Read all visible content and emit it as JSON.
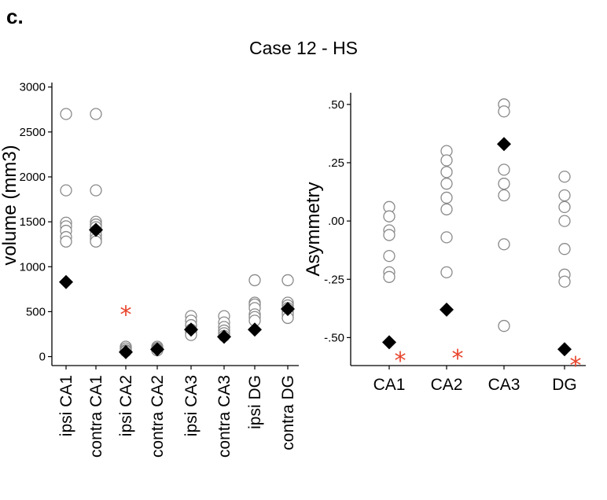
{
  "panel_label": "c.",
  "figure_title": "Case 12 - HS",
  "colors": {
    "open_marker": "#8a8a8a",
    "filled_marker": "#000000",
    "star": "#e8452c",
    "axis": "#000000"
  },
  "chart_data": [
    {
      "type": "scatter",
      "title": "",
      "xlabel": "",
      "ylabel": "Volume (mm3)",
      "ylabel_visible": "volume (mm3)",
      "ylim": [
        -100,
        3050
      ],
      "yticks": [
        0,
        500,
        1000,
        1500,
        2000,
        2500,
        3000
      ],
      "ytick_labels": [
        "0",
        "500",
        "1000",
        "1500",
        "2000",
        "2500",
        "3000"
      ],
      "categories": [
        "ipsi CA1",
        "contra CA1",
        "ipsi CA2",
        "contra CA2",
        "ipsi CA3",
        "contra CA3",
        "ipsi DG",
        "contra DG"
      ],
      "series": [
        {
          "marker": "open-circle",
          "values": [
            [
              2700,
              1850,
              1490,
              1450,
              1400,
              1330,
              1280
            ],
            [
              2700,
              1850,
              1500,
              1470,
              1440,
              1400,
              1350,
              1310,
              1280
            ],
            [
              110,
              90,
              70,
              60
            ],
            [
              110,
              95,
              80,
              70
            ],
            [
              450,
              400,
              350,
              300,
              270,
              240
            ],
            [
              450,
              380,
              330,
              290,
              260,
              230
            ],
            [
              850,
              600,
              580,
              540,
              470,
              440,
              400
            ],
            [
              850,
              600,
              570,
              540,
              500,
              470,
              430
            ]
          ]
        },
        {
          "marker": "filled-diamond",
          "values": [
            830,
            1410,
            50,
            80,
            300,
            220,
            300,
            530
          ]
        }
      ],
      "annotations": [
        {
          "category": "ipsi CA2",
          "y": 490,
          "marker": "red-asterisk"
        }
      ]
    },
    {
      "type": "scatter",
      "title": "",
      "xlabel": "",
      "ylabel": "Asymmetry",
      "ylim": [
        -0.62,
        0.55
      ],
      "yticks": [
        0.5,
        0.25,
        0.0,
        -0.25,
        -0.5
      ],
      "ytick_labels": [
        ".50",
        ".25",
        ".00",
        "-.25",
        "-.50"
      ],
      "categories": [
        "CA1",
        "CA2",
        "CA3",
        "DG"
      ],
      "series": [
        {
          "marker": "open-circle",
          "values": [
            [
              0.06,
              0.02,
              -0.04,
              -0.06,
              -0.15,
              -0.22,
              -0.24
            ],
            [
              0.3,
              0.26,
              0.21,
              0.16,
              0.1,
              0.05,
              -0.07,
              -0.22
            ],
            [
              0.5,
              0.47,
              0.22,
              0.16,
              0.11,
              -0.1,
              -0.45
            ],
            [
              0.19,
              0.11,
              0.06,
              0.0,
              -0.12,
              -0.23,
              -0.26
            ]
          ]
        },
        {
          "marker": "filled-diamond",
          "values": [
            -0.52,
            -0.38,
            0.33,
            -0.55
          ]
        }
      ],
      "annotations": [
        {
          "category": "CA1",
          "y": -0.59,
          "marker": "red-asterisk"
        },
        {
          "category": "CA2",
          "y": -0.58,
          "marker": "red-asterisk"
        },
        {
          "category": "DG",
          "y": -0.61,
          "marker": "red-asterisk"
        }
      ]
    }
  ]
}
